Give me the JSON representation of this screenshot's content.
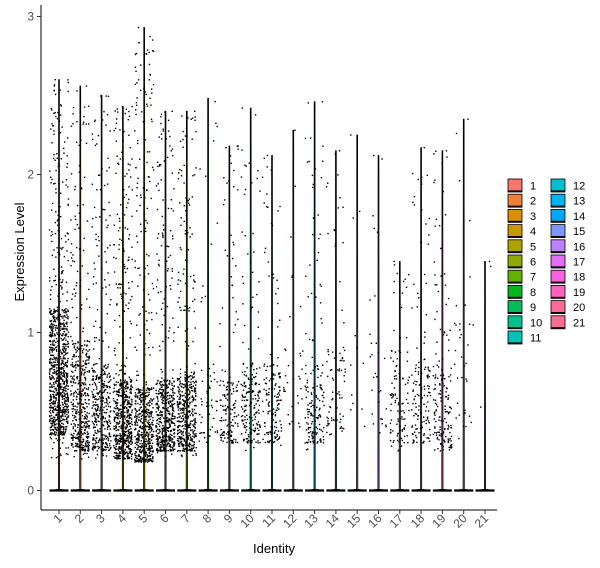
{
  "chart_data": {
    "type": "violin",
    "xlabel": "Identity",
    "ylabel": "Expression Level",
    "ylim": [
      -0.15,
      3.05
    ],
    "y_ticks": [
      0,
      1,
      2,
      3
    ],
    "grid": false,
    "legend_position": "right",
    "categories": [
      "1",
      "2",
      "3",
      "4",
      "5",
      "6",
      "7",
      "8",
      "9",
      "10",
      "11",
      "12",
      "13",
      "14",
      "15",
      "16",
      "17",
      "18",
      "19",
      "20",
      "21"
    ],
    "series": [
      {
        "identity": "1",
        "color": "#F8766D",
        "max": 2.6,
        "point_count": 900,
        "dense_low": 0.35,
        "dense_high": 1.15,
        "sparse_low": 0.2
      },
      {
        "identity": "2",
        "color": "#EC8239",
        "max": 2.56,
        "point_count": 460,
        "dense_low": 0.25,
        "dense_high": 0.95,
        "sparse_low": 0.2
      },
      {
        "identity": "3",
        "color": "#DB8E00",
        "max": 2.5,
        "point_count": 390,
        "dense_low": 0.25,
        "dense_high": 0.8,
        "sparse_low": 0.2
      },
      {
        "identity": "4",
        "color": "#C79800",
        "max": 2.43,
        "point_count": 620,
        "dense_low": 0.2,
        "dense_high": 0.7,
        "sparse_low": 0.2
      },
      {
        "identity": "5",
        "color": "#AEA200",
        "max": 2.93,
        "point_count": 560,
        "dense_low": 0.18,
        "dense_high": 0.65,
        "sparse_low": 0.15
      },
      {
        "identity": "6",
        "color": "#8FAA00",
        "max": 2.4,
        "point_count": 520,
        "dense_low": 0.25,
        "dense_high": 0.7,
        "sparse_low": 0.2
      },
      {
        "identity": "7",
        "color": "#64B200",
        "max": 2.4,
        "point_count": 480,
        "dense_low": 0.25,
        "dense_high": 0.75,
        "sparse_low": 0.2
      },
      {
        "identity": "8",
        "color": "#00B81B",
        "max": 2.48,
        "point_count": 60,
        "dense_low": 0.3,
        "dense_high": 0.8,
        "sparse_low": 0.3
      },
      {
        "identity": "9",
        "color": "#00BD5C",
        "max": 2.18,
        "point_count": 150,
        "dense_low": 0.3,
        "dense_high": 0.7,
        "sparse_low": 0.25
      },
      {
        "identity": "10",
        "color": "#00C08E",
        "max": 2.42,
        "point_count": 210,
        "dense_low": 0.3,
        "dense_high": 0.8,
        "sparse_low": 0.25
      },
      {
        "identity": "11",
        "color": "#00C1B7",
        "max": 2.12,
        "point_count": 150,
        "dense_low": 0.3,
        "dense_high": 0.8,
        "sparse_low": 0.25
      },
      {
        "identity": "12",
        "color": "#00BDD4",
        "max": 2.28,
        "point_count": 35,
        "dense_low": 0.4,
        "dense_high": 0.9,
        "sparse_low": 0.3
      },
      {
        "identity": "13",
        "color": "#00B5EE",
        "max": 2.46,
        "point_count": 170,
        "dense_low": 0.3,
        "dense_high": 0.8,
        "sparse_low": 0.25
      },
      {
        "identity": "14",
        "color": "#00A7FF",
        "max": 2.15,
        "point_count": 80,
        "dense_low": 0.35,
        "dense_high": 0.9,
        "sparse_low": 0.3
      },
      {
        "identity": "15",
        "color": "#7F96FF",
        "max": 2.25,
        "point_count": 12,
        "dense_low": 0.4,
        "dense_high": 1.0,
        "sparse_low": 0.35
      },
      {
        "identity": "16",
        "color": "#BC81FF",
        "max": 2.12,
        "point_count": 30,
        "dense_low": 0.35,
        "dense_high": 1.0,
        "sparse_low": 0.3
      },
      {
        "identity": "17",
        "color": "#E26EF7",
        "max": 1.45,
        "point_count": 110,
        "dense_low": 0.3,
        "dense_high": 0.9,
        "sparse_low": 0.25
      },
      {
        "identity": "18",
        "color": "#F863DF",
        "max": 2.17,
        "point_count": 140,
        "dense_low": 0.3,
        "dense_high": 0.8,
        "sparse_low": 0.25
      },
      {
        "identity": "19",
        "color": "#FF62BF",
        "max": 2.15,
        "point_count": 170,
        "dense_low": 0.25,
        "dense_high": 0.8,
        "sparse_low": 0.2
      },
      {
        "identity": "20",
        "color": "#FF6A98",
        "max": 2.35,
        "point_count": 35,
        "dense_low": 0.4,
        "dense_high": 1.2,
        "sparse_low": 0.3
      },
      {
        "identity": "21",
        "color": "#FF6C91",
        "max": 1.45,
        "point_count": 3,
        "dense_low": 0.45,
        "dense_high": 1.45,
        "sparse_low": 0.4
      }
    ]
  }
}
